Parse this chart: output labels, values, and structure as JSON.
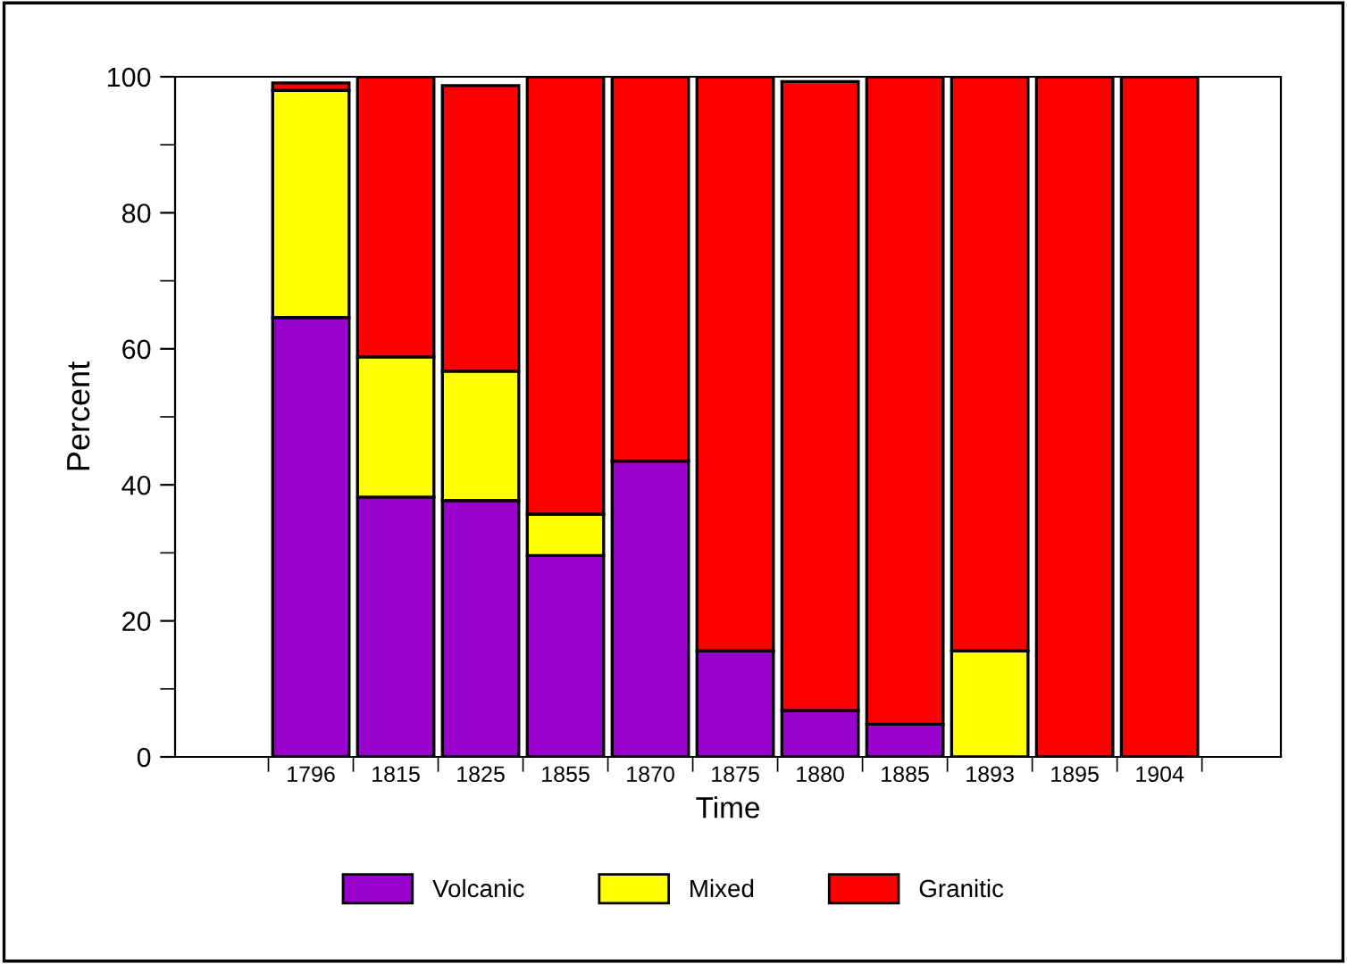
{
  "chart_data": {
    "type": "bar",
    "stacked": true,
    "xlabel": "Time",
    "ylabel": "Percent",
    "categories": [
      "1796",
      "1815",
      "1825",
      "1855",
      "1870",
      "1875",
      "1880",
      "1885",
      "1893",
      "1895",
      "1904"
    ],
    "series": [
      {
        "name": "Volcanic",
        "color": "#9900cc",
        "values": [
          64.6,
          38.2,
          37.7,
          29.6,
          43.5,
          15.6,
          6.8,
          4.8,
          null,
          null,
          null
        ]
      },
      {
        "name": "Mixed",
        "color": "#ffff00",
        "values": [
          33.4,
          20.6,
          19.0,
          6.1,
          null,
          null,
          null,
          null,
          15.6,
          null,
          null
        ]
      },
      {
        "name": "Granitic",
        "color": "#ff0000",
        "values": [
          1.1,
          41.2,
          42.0,
          64.3,
          56.5,
          84.4,
          92.5,
          95.2,
          84.4,
          100,
          100
        ]
      }
    ],
    "ylim": [
      0,
      100
    ],
    "yticks": [
      0,
      20,
      40,
      60,
      80,
      100
    ],
    "grid": false,
    "legend": "bottom"
  }
}
